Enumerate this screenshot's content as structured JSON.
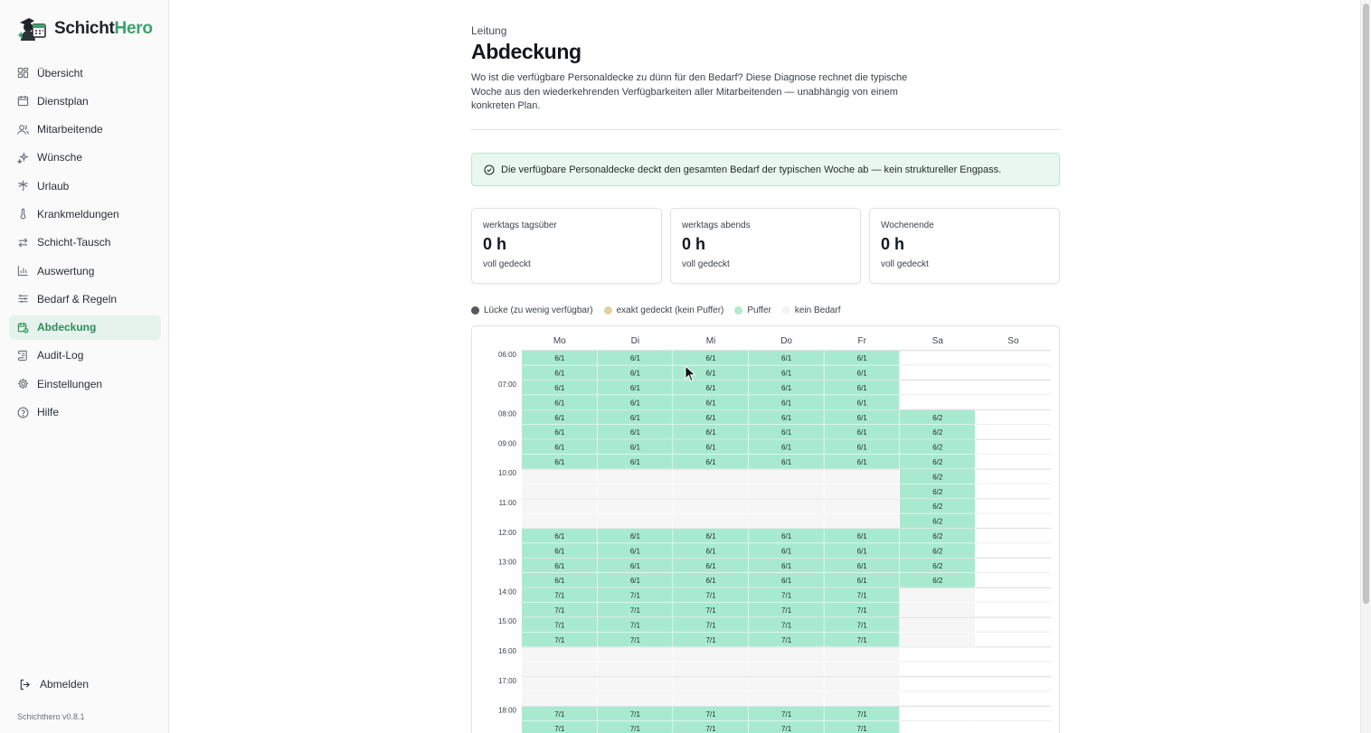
{
  "app": {
    "name_part1": "Schicht",
    "name_part2": "Hero",
    "version": "Schichthero v0.8.1"
  },
  "sidebar": {
    "items": [
      {
        "label": "Übersicht",
        "icon": "grid-icon"
      },
      {
        "label": "Dienstplan",
        "icon": "calendar-icon"
      },
      {
        "label": "Mitarbeitende",
        "icon": "users-icon"
      },
      {
        "label": "Wünsche",
        "icon": "sparkles-icon"
      },
      {
        "label": "Urlaub",
        "icon": "palm-tree-icon"
      },
      {
        "label": "Krankmeldungen",
        "icon": "thermometer-icon"
      },
      {
        "label": "Schicht-Tausch",
        "icon": "swap-icon"
      },
      {
        "label": "Auswertung",
        "icon": "bar-chart-icon"
      },
      {
        "label": "Bedarf & Regeln",
        "icon": "sliders-icon"
      },
      {
        "label": "Abdeckung",
        "icon": "calendar-check-icon",
        "active": true
      },
      {
        "label": "Audit-Log",
        "icon": "scroll-icon"
      },
      {
        "label": "Einstellungen",
        "icon": "gear-icon"
      },
      {
        "label": "Hilfe",
        "icon": "help-circle-icon"
      }
    ],
    "logout_label": "Abmelden"
  },
  "page": {
    "breadcrumb": "Leitung",
    "title": "Abdeckung",
    "description": "Wo ist die verfügbare Personaldecke zu dünn für den Bedarf? Diese Diagnose rechnet die typische Woche aus den wiederkehrenden Verfügbarkeiten aller Mitarbeitenden — unabhängig von einem konkreten Plan.",
    "alert": "Die verfügbare Personaldecke deckt den gesamten Bedarf der typischen Woche ab — kein struktureller Engpass."
  },
  "cards": [
    {
      "label": "werktags tagsüber",
      "value": "0 h",
      "sub": "voll gedeckt"
    },
    {
      "label": "werktags abends",
      "value": "0 h",
      "sub": "voll gedeckt"
    },
    {
      "label": "Wochenende",
      "value": "0 h",
      "sub": "voll gedeckt"
    }
  ],
  "legend": [
    {
      "label": "Lücke (zu wenig verfügbar)",
      "color": "#555a5f"
    },
    {
      "label": "exakt gedeckt (kein Puffer)",
      "color": "#e2cf9f"
    },
    {
      "label": "Puffer",
      "color": "#aeecd0"
    },
    {
      "label": "kein Bedarf",
      "color": "#f3f3f3"
    }
  ],
  "colors": {
    "accent": "#3aa36f",
    "buffer": "#a8ead0",
    "empty": "#f6f6f6"
  },
  "coverage": {
    "days": [
      "Mo",
      "Di",
      "Mi",
      "Do",
      "Fr",
      "Sa",
      "So"
    ],
    "hours": [
      "06:00",
      "07:00",
      "08:00",
      "09:00",
      "10:00",
      "11:00",
      "12:00",
      "13:00",
      "14:00",
      "15:00",
      "16:00",
      "17:00",
      "18:00"
    ],
    "slot_minutes": 30,
    "rows": [
      [
        "6/1",
        "6/1",
        "6/1",
        "6/1",
        "6/1",
        "",
        ""
      ],
      [
        "6/1",
        "6/1",
        "6/1",
        "6/1",
        "6/1",
        "",
        ""
      ],
      [
        "6/1",
        "6/1",
        "6/1",
        "6/1",
        "6/1",
        "",
        ""
      ],
      [
        "6/1",
        "6/1",
        "6/1",
        "6/1",
        "6/1",
        "",
        ""
      ],
      [
        "6/1",
        "6/1",
        "6/1",
        "6/1",
        "6/1",
        "6/2",
        ""
      ],
      [
        "6/1",
        "6/1",
        "6/1",
        "6/1",
        "6/1",
        "6/2",
        ""
      ],
      [
        "6/1",
        "6/1",
        "6/1",
        "6/1",
        "6/1",
        "6/2",
        ""
      ],
      [
        "6/1",
        "6/1",
        "6/1",
        "6/1",
        "6/1",
        "6/2",
        ""
      ],
      [
        "-",
        "-",
        "-",
        "-",
        "-",
        "6/2",
        ""
      ],
      [
        "-",
        "-",
        "-",
        "-",
        "-",
        "6/2",
        ""
      ],
      [
        "-",
        "-",
        "-",
        "-",
        "-",
        "6/2",
        ""
      ],
      [
        "-",
        "-",
        "-",
        "-",
        "-",
        "6/2",
        ""
      ],
      [
        "6/1",
        "6/1",
        "6/1",
        "6/1",
        "6/1",
        "6/2",
        ""
      ],
      [
        "6/1",
        "6/1",
        "6/1",
        "6/1",
        "6/1",
        "6/2",
        ""
      ],
      [
        "6/1",
        "6/1",
        "6/1",
        "6/1",
        "6/1",
        "6/2",
        ""
      ],
      [
        "6/1",
        "6/1",
        "6/1",
        "6/1",
        "6/1",
        "6/2",
        ""
      ],
      [
        "7/1",
        "7/1",
        "7/1",
        "7/1",
        "7/1",
        "-",
        ""
      ],
      [
        "7/1",
        "7/1",
        "7/1",
        "7/1",
        "7/1",
        "-",
        ""
      ],
      [
        "7/1",
        "7/1",
        "7/1",
        "7/1",
        "7/1",
        "-",
        ""
      ],
      [
        "7/1",
        "7/1",
        "7/1",
        "7/1",
        "7/1",
        "-",
        ""
      ],
      [
        "-",
        "-",
        "-",
        "-",
        "-",
        "",
        ""
      ],
      [
        "-",
        "-",
        "-",
        "-",
        "-",
        "",
        ""
      ],
      [
        "-",
        "-",
        "-",
        "-",
        "-",
        "",
        ""
      ],
      [
        "-",
        "-",
        "-",
        "-",
        "-",
        "",
        ""
      ],
      [
        "7/1",
        "7/1",
        "7/1",
        "7/1",
        "7/1",
        "",
        ""
      ],
      [
        "7/1",
        "7/1",
        "7/1",
        "7/1",
        "7/1",
        "",
        ""
      ]
    ]
  }
}
